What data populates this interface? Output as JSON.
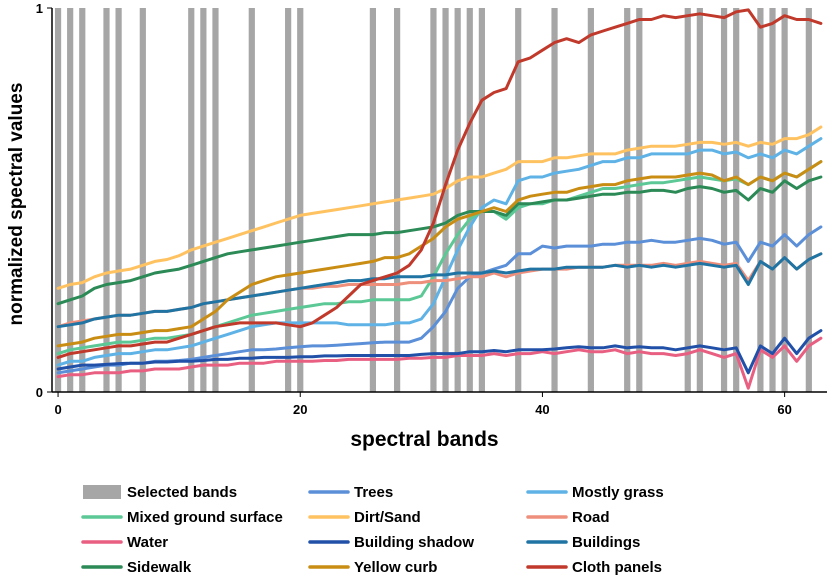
{
  "chart_data": {
    "type": "line",
    "title": "",
    "xlabel": "spectral bands",
    "ylabel": "normalized spectral values",
    "xlim": [
      -0.5,
      63.5
    ],
    "ylim": [
      0,
      1
    ],
    "xticks": [
      0,
      20,
      40,
      60
    ],
    "yticks": [
      0,
      1
    ],
    "grid": false,
    "legend_position": "bottom",
    "selected_bands": {
      "name": "Selected bands",
      "color": "#a6a6a6",
      "bands": [
        0,
        1,
        2,
        4,
        5,
        7,
        11,
        12,
        13,
        16,
        19,
        20,
        26,
        28,
        31,
        32,
        33,
        34,
        35,
        38,
        41,
        44,
        47,
        48,
        52,
        53,
        55,
        56,
        58,
        59,
        60,
        62
      ]
    },
    "series": [
      {
        "name": "Trees",
        "color": "#5b8fd8",
        "values": [
          0.05,
          0.055,
          0.06,
          0.065,
          0.07,
          0.07,
          0.075,
          0.075,
          0.08,
          0.08,
          0.082,
          0.085,
          0.09,
          0.095,
          0.1,
          0.105,
          0.11,
          0.11,
          0.112,
          0.115,
          0.118,
          0.12,
          0.12,
          0.122,
          0.124,
          0.126,
          0.128,
          0.13,
          0.13,
          0.13,
          0.14,
          0.17,
          0.21,
          0.27,
          0.3,
          0.31,
          0.32,
          0.33,
          0.36,
          0.36,
          0.38,
          0.375,
          0.38,
          0.38,
          0.38,
          0.385,
          0.385,
          0.39,
          0.39,
          0.395,
          0.39,
          0.39,
          0.395,
          0.4,
          0.395,
          0.385,
          0.39,
          0.34,
          0.39,
          0.38,
          0.41,
          0.38,
          0.41,
          0.43
        ]
      },
      {
        "name": "Mostly grass",
        "color": "#5eb2e6",
        "values": [
          0.07,
          0.08,
          0.08,
          0.09,
          0.095,
          0.1,
          0.1,
          0.105,
          0.11,
          0.11,
          0.115,
          0.12,
          0.13,
          0.14,
          0.15,
          0.16,
          0.17,
          0.175,
          0.18,
          0.18,
          0.18,
          0.18,
          0.18,
          0.18,
          0.175,
          0.175,
          0.175,
          0.175,
          0.18,
          0.18,
          0.19,
          0.23,
          0.3,
          0.37,
          0.43,
          0.48,
          0.5,
          0.49,
          0.55,
          0.56,
          0.56,
          0.57,
          0.575,
          0.58,
          0.59,
          0.6,
          0.6,
          0.61,
          0.61,
          0.62,
          0.62,
          0.62,
          0.62,
          0.63,
          0.63,
          0.62,
          0.625,
          0.61,
          0.62,
          0.61,
          0.63,
          0.62,
          0.64,
          0.66
        ]
      },
      {
        "name": "Mixed ground surface",
        "color": "#5bc895",
        "values": [
          0.1,
          0.11,
          0.115,
          0.12,
          0.125,
          0.13,
          0.13,
          0.135,
          0.14,
          0.14,
          0.145,
          0.15,
          0.16,
          0.17,
          0.18,
          0.19,
          0.2,
          0.205,
          0.21,
          0.215,
          0.22,
          0.225,
          0.23,
          0.23,
          0.235,
          0.235,
          0.24,
          0.24,
          0.24,
          0.24,
          0.25,
          0.3,
          0.36,
          0.41,
          0.45,
          0.47,
          0.47,
          0.45,
          0.48,
          0.49,
          0.49,
          0.5,
          0.5,
          0.51,
          0.52,
          0.53,
          0.53,
          0.535,
          0.54,
          0.545,
          0.545,
          0.55,
          0.555,
          0.56,
          0.555,
          0.55,
          0.555,
          0.54,
          0.56,
          0.55,
          0.57,
          0.56,
          0.58,
          0.6
        ]
      },
      {
        "name": "Dirt/Sand",
        "color": "#ffc261",
        "values": [
          0.27,
          0.28,
          0.285,
          0.3,
          0.31,
          0.315,
          0.32,
          0.33,
          0.34,
          0.345,
          0.355,
          0.37,
          0.38,
          0.39,
          0.4,
          0.41,
          0.42,
          0.43,
          0.44,
          0.45,
          0.46,
          0.465,
          0.47,
          0.475,
          0.48,
          0.485,
          0.49,
          0.495,
          0.5,
          0.505,
          0.51,
          0.515,
          0.53,
          0.55,
          0.56,
          0.56,
          0.57,
          0.58,
          0.6,
          0.6,
          0.6,
          0.61,
          0.61,
          0.615,
          0.62,
          0.62,
          0.62,
          0.63,
          0.635,
          0.64,
          0.64,
          0.64,
          0.645,
          0.65,
          0.65,
          0.645,
          0.65,
          0.64,
          0.65,
          0.645,
          0.66,
          0.66,
          0.67,
          0.69
        ]
      },
      {
        "name": "Road",
        "color": "#ee8f7c",
        "values": [
          0.17,
          0.18,
          0.185,
          0.19,
          0.195,
          0.2,
          0.2,
          0.205,
          0.21,
          0.21,
          0.215,
          0.22,
          0.23,
          0.235,
          0.24,
          0.245,
          0.25,
          0.255,
          0.26,
          0.265,
          0.27,
          0.27,
          0.275,
          0.275,
          0.28,
          0.28,
          0.28,
          0.28,
          0.28,
          0.285,
          0.285,
          0.29,
          0.29,
          0.295,
          0.3,
          0.3,
          0.31,
          0.3,
          0.31,
          0.315,
          0.32,
          0.32,
          0.32,
          0.325,
          0.325,
          0.325,
          0.33,
          0.33,
          0.33,
          0.33,
          0.335,
          0.33,
          0.335,
          0.34,
          0.335,
          0.33,
          0.335,
          0.29,
          0.34,
          0.32,
          0.35,
          0.32,
          0.345,
          0.36
        ]
      },
      {
        "name": "Water",
        "color": "#e85f82",
        "values": [
          0.04,
          0.045,
          0.045,
          0.05,
          0.05,
          0.05,
          0.055,
          0.055,
          0.06,
          0.06,
          0.06,
          0.065,
          0.07,
          0.07,
          0.07,
          0.075,
          0.075,
          0.075,
          0.08,
          0.08,
          0.08,
          0.08,
          0.082,
          0.082,
          0.085,
          0.085,
          0.085,
          0.085,
          0.085,
          0.088,
          0.088,
          0.09,
          0.09,
          0.095,
          0.095,
          0.095,
          0.1,
          0.095,
          0.1,
          0.1,
          0.105,
          0.1,
          0.105,
          0.11,
          0.105,
          0.105,
          0.11,
          0.1,
          0.105,
          0.1,
          0.1,
          0.095,
          0.1,
          0.11,
          0.1,
          0.09,
          0.1,
          0.01,
          0.11,
          0.09,
          0.12,
          0.08,
          0.12,
          0.14
        ]
      },
      {
        "name": "Building shadow",
        "color": "#2150a8",
        "values": [
          0.06,
          0.065,
          0.07,
          0.07,
          0.072,
          0.074,
          0.075,
          0.075,
          0.078,
          0.078,
          0.08,
          0.08,
          0.082,
          0.085,
          0.085,
          0.088,
          0.088,
          0.09,
          0.09,
          0.09,
          0.092,
          0.092,
          0.094,
          0.094,
          0.095,
          0.095,
          0.095,
          0.095,
          0.095,
          0.095,
          0.098,
          0.1,
          0.1,
          0.1,
          0.105,
          0.105,
          0.108,
          0.105,
          0.11,
          0.11,
          0.11,
          0.112,
          0.115,
          0.118,
          0.115,
          0.115,
          0.12,
          0.115,
          0.118,
          0.115,
          0.115,
          0.11,
          0.115,
          0.12,
          0.115,
          0.11,
          0.115,
          0.05,
          0.12,
          0.1,
          0.14,
          0.1,
          0.14,
          0.16
        ]
      },
      {
        "name": "Buildings",
        "color": "#1f74a3",
        "values": [
          0.17,
          0.175,
          0.18,
          0.19,
          0.195,
          0.2,
          0.2,
          0.205,
          0.21,
          0.21,
          0.215,
          0.22,
          0.23,
          0.235,
          0.24,
          0.245,
          0.25,
          0.255,
          0.26,
          0.265,
          0.27,
          0.275,
          0.28,
          0.285,
          0.29,
          0.29,
          0.295,
          0.295,
          0.3,
          0.3,
          0.3,
          0.305,
          0.305,
          0.31,
          0.31,
          0.31,
          0.315,
          0.31,
          0.315,
          0.32,
          0.32,
          0.32,
          0.325,
          0.325,
          0.325,
          0.325,
          0.33,
          0.325,
          0.33,
          0.325,
          0.33,
          0.325,
          0.33,
          0.335,
          0.33,
          0.325,
          0.33,
          0.28,
          0.34,
          0.32,
          0.35,
          0.32,
          0.345,
          0.36
        ]
      },
      {
        "name": "Sidewalk",
        "color": "#2b8a56",
        "values": [
          0.23,
          0.24,
          0.25,
          0.27,
          0.28,
          0.285,
          0.29,
          0.3,
          0.31,
          0.315,
          0.32,
          0.33,
          0.34,
          0.35,
          0.36,
          0.365,
          0.37,
          0.375,
          0.38,
          0.385,
          0.39,
          0.395,
          0.4,
          0.405,
          0.41,
          0.41,
          0.41,
          0.415,
          0.415,
          0.42,
          0.425,
          0.43,
          0.44,
          0.46,
          0.47,
          0.47,
          0.47,
          0.46,
          0.49,
          0.49,
          0.495,
          0.5,
          0.5,
          0.505,
          0.51,
          0.515,
          0.515,
          0.52,
          0.52,
          0.525,
          0.525,
          0.52,
          0.53,
          0.535,
          0.53,
          0.52,
          0.525,
          0.5,
          0.53,
          0.52,
          0.55,
          0.53,
          0.55,
          0.56
        ]
      },
      {
        "name": "Yellow curb",
        "color": "#c98d14",
        "values": [
          0.12,
          0.125,
          0.13,
          0.14,
          0.145,
          0.15,
          0.15,
          0.155,
          0.16,
          0.16,
          0.165,
          0.17,
          0.19,
          0.21,
          0.24,
          0.26,
          0.28,
          0.29,
          0.3,
          0.305,
          0.31,
          0.315,
          0.32,
          0.325,
          0.33,
          0.335,
          0.34,
          0.35,
          0.35,
          0.36,
          0.38,
          0.4,
          0.43,
          0.45,
          0.46,
          0.47,
          0.48,
          0.47,
          0.5,
          0.51,
          0.515,
          0.52,
          0.52,
          0.53,
          0.535,
          0.54,
          0.54,
          0.55,
          0.555,
          0.56,
          0.56,
          0.56,
          0.565,
          0.57,
          0.565,
          0.55,
          0.56,
          0.54,
          0.56,
          0.55,
          0.57,
          0.56,
          0.58,
          0.6
        ]
      },
      {
        "name": "Cloth panels",
        "color": "#c0392b",
        "values": [
          0.09,
          0.1,
          0.105,
          0.11,
          0.115,
          0.12,
          0.12,
          0.125,
          0.13,
          0.13,
          0.14,
          0.15,
          0.16,
          0.17,
          0.175,
          0.18,
          0.18,
          0.18,
          0.18,
          0.175,
          0.17,
          0.18,
          0.2,
          0.22,
          0.25,
          0.28,
          0.29,
          0.3,
          0.31,
          0.33,
          0.37,
          0.44,
          0.54,
          0.63,
          0.7,
          0.76,
          0.78,
          0.79,
          0.86,
          0.87,
          0.89,
          0.91,
          0.92,
          0.91,
          0.93,
          0.94,
          0.95,
          0.96,
          0.97,
          0.97,
          0.98,
          0.975,
          0.98,
          0.985,
          0.98,
          0.975,
          0.99,
          0.995,
          0.95,
          0.96,
          0.98,
          0.97,
          0.97,
          0.96
        ]
      }
    ]
  }
}
